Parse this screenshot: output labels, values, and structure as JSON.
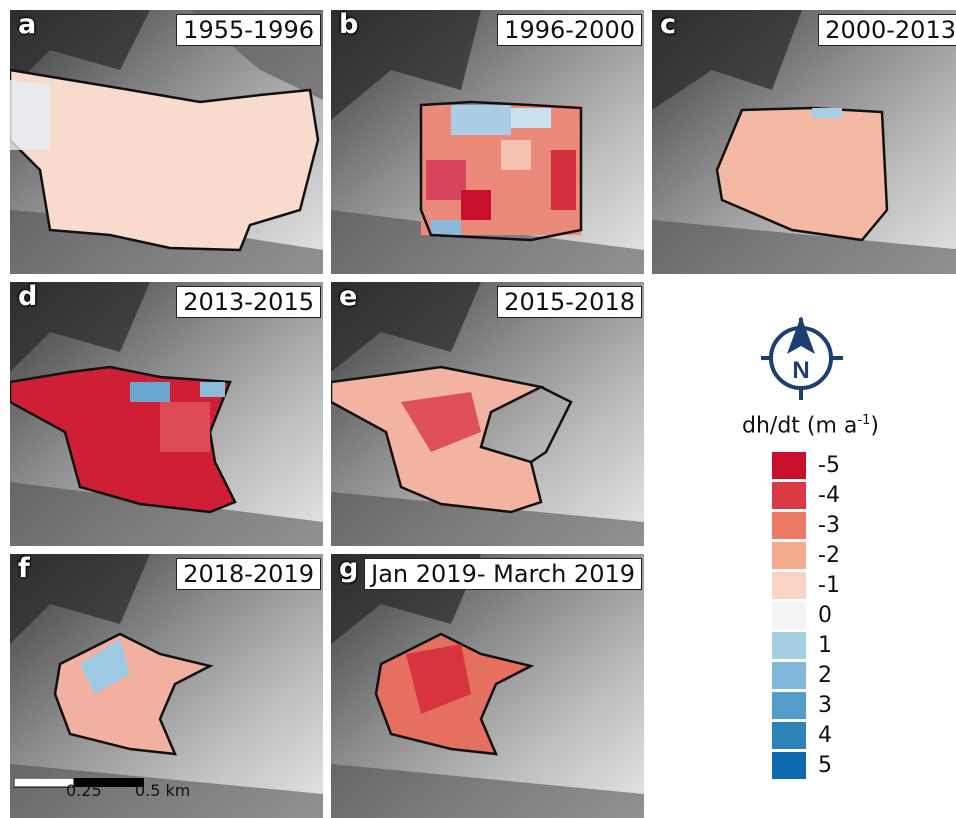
{
  "panels": [
    {
      "letter": "a",
      "period": "1955-1996"
    },
    {
      "letter": "b",
      "period": "1996-2000"
    },
    {
      "letter": "c",
      "period": "2000-2013"
    },
    {
      "letter": "d",
      "period": "2013-2015"
    },
    {
      "letter": "e",
      "period": "2015-2018"
    },
    {
      "letter": "f",
      "period": "2018-2019"
    },
    {
      "letter": "g",
      "period": "Jan 2019- March 2019"
    }
  ],
  "legend": {
    "title_main": "dh/dt (m a",
    "title_sup": "-1",
    "title_end": ")",
    "compass_letter": "N",
    "classes": [
      {
        "label": "-5",
        "color": "#c8102e"
      },
      {
        "label": "-4",
        "color": "#d93a44"
      },
      {
        "label": "-3",
        "color": "#ec7a63"
      },
      {
        "label": "-2",
        "color": "#f5ab8e"
      },
      {
        "label": "-1",
        "color": "#f9d3c4"
      },
      {
        "label": "0",
        "color": "#f4f4f4"
      },
      {
        "label": "1",
        "color": "#a6cfe4"
      },
      {
        "label": "2",
        "color": "#7fb7d8"
      },
      {
        "label": "3",
        "color": "#549dca"
      },
      {
        "label": "4",
        "color": "#2d82ba"
      },
      {
        "label": "5",
        "color": "#0d68ad"
      }
    ]
  },
  "scale": {
    "mid": "0.25",
    "end": "0.5 km"
  }
}
